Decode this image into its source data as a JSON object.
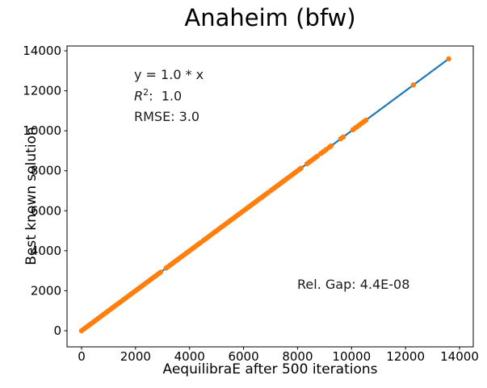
{
  "chart_data": {
    "type": "scatter",
    "title": "Anaheim (bfw)",
    "xlabel": "AequilibraE after 500 iterations",
    "ylabel": "Best known solution",
    "x_ticks": [
      0,
      2000,
      4000,
      6000,
      8000,
      10000,
      12000,
      14000
    ],
    "y_ticks": [
      0,
      2000,
      4000,
      6000,
      8000,
      10000,
      12000,
      14000
    ],
    "xlim": [
      -540,
      14510
    ],
    "ylim": [
      -810,
      14240
    ],
    "grid": false,
    "legend": null,
    "frame_color": "#000000",
    "fit_line": {
      "label": "y = 1.0 * x",
      "color": "#1f77b4",
      "x": [
        0,
        13600
      ],
      "y": [
        0,
        13600
      ]
    },
    "scatter": {
      "color": "#ff7f0e",
      "y_rule": "y = x (identity fit, RMSE 3.0)",
      "x": [
        0,
        75,
        150,
        225,
        300,
        375,
        450,
        525,
        600,
        675,
        750,
        825,
        900,
        975,
        1050,
        1125,
        1200,
        1275,
        1350,
        1425,
        1500,
        1575,
        1650,
        1725,
        1800,
        1875,
        1950,
        2025,
        2100,
        2175,
        2250,
        2325,
        2400,
        2475,
        2550,
        2625,
        2700,
        2775,
        2850,
        2925,
        3130,
        3205,
        3280,
        3355,
        3430,
        3505,
        3580,
        3655,
        3730,
        3805,
        3880,
        3955,
        4030,
        4105,
        4180,
        4255,
        4330,
        4405,
        4510,
        4585,
        4660,
        4735,
        4810,
        4885,
        4960,
        5035,
        5110,
        5185,
        5260,
        5335,
        5410,
        5485,
        5560,
        5635,
        5710,
        5785,
        5860,
        5935,
        6010,
        6085,
        6160,
        6235,
        6310,
        6385,
        6460,
        6535,
        6610,
        6685,
        6760,
        6835,
        6910,
        7010,
        7085,
        7160,
        7235,
        7310,
        7385,
        7460,
        7535,
        7610,
        7685,
        7760,
        7835,
        7910,
        7985,
        8060,
        8125,
        8350,
        8430,
        8510,
        8590,
        8660,
        8730,
        8860,
        8930,
        9000,
        9070,
        9180,
        9240,
        9600,
        9690,
        10050,
        10130,
        10210,
        10290,
        10370,
        10450,
        10530,
        12290,
        13600
      ]
    },
    "annotations": {
      "equation": "y = 1.0 * x",
      "r2": {
        "prefix": "R",
        "sup": "2",
        "rest": ":  1.0"
      },
      "rmse": "RMSE: 3.0",
      "rel_gap": "Rel. Gap: 4.4E-08"
    },
    "stats": {
      "slope": 1.0,
      "r_squared": 1.0,
      "rmse": 3.0,
      "relative_gap": "4.4E-08"
    }
  }
}
